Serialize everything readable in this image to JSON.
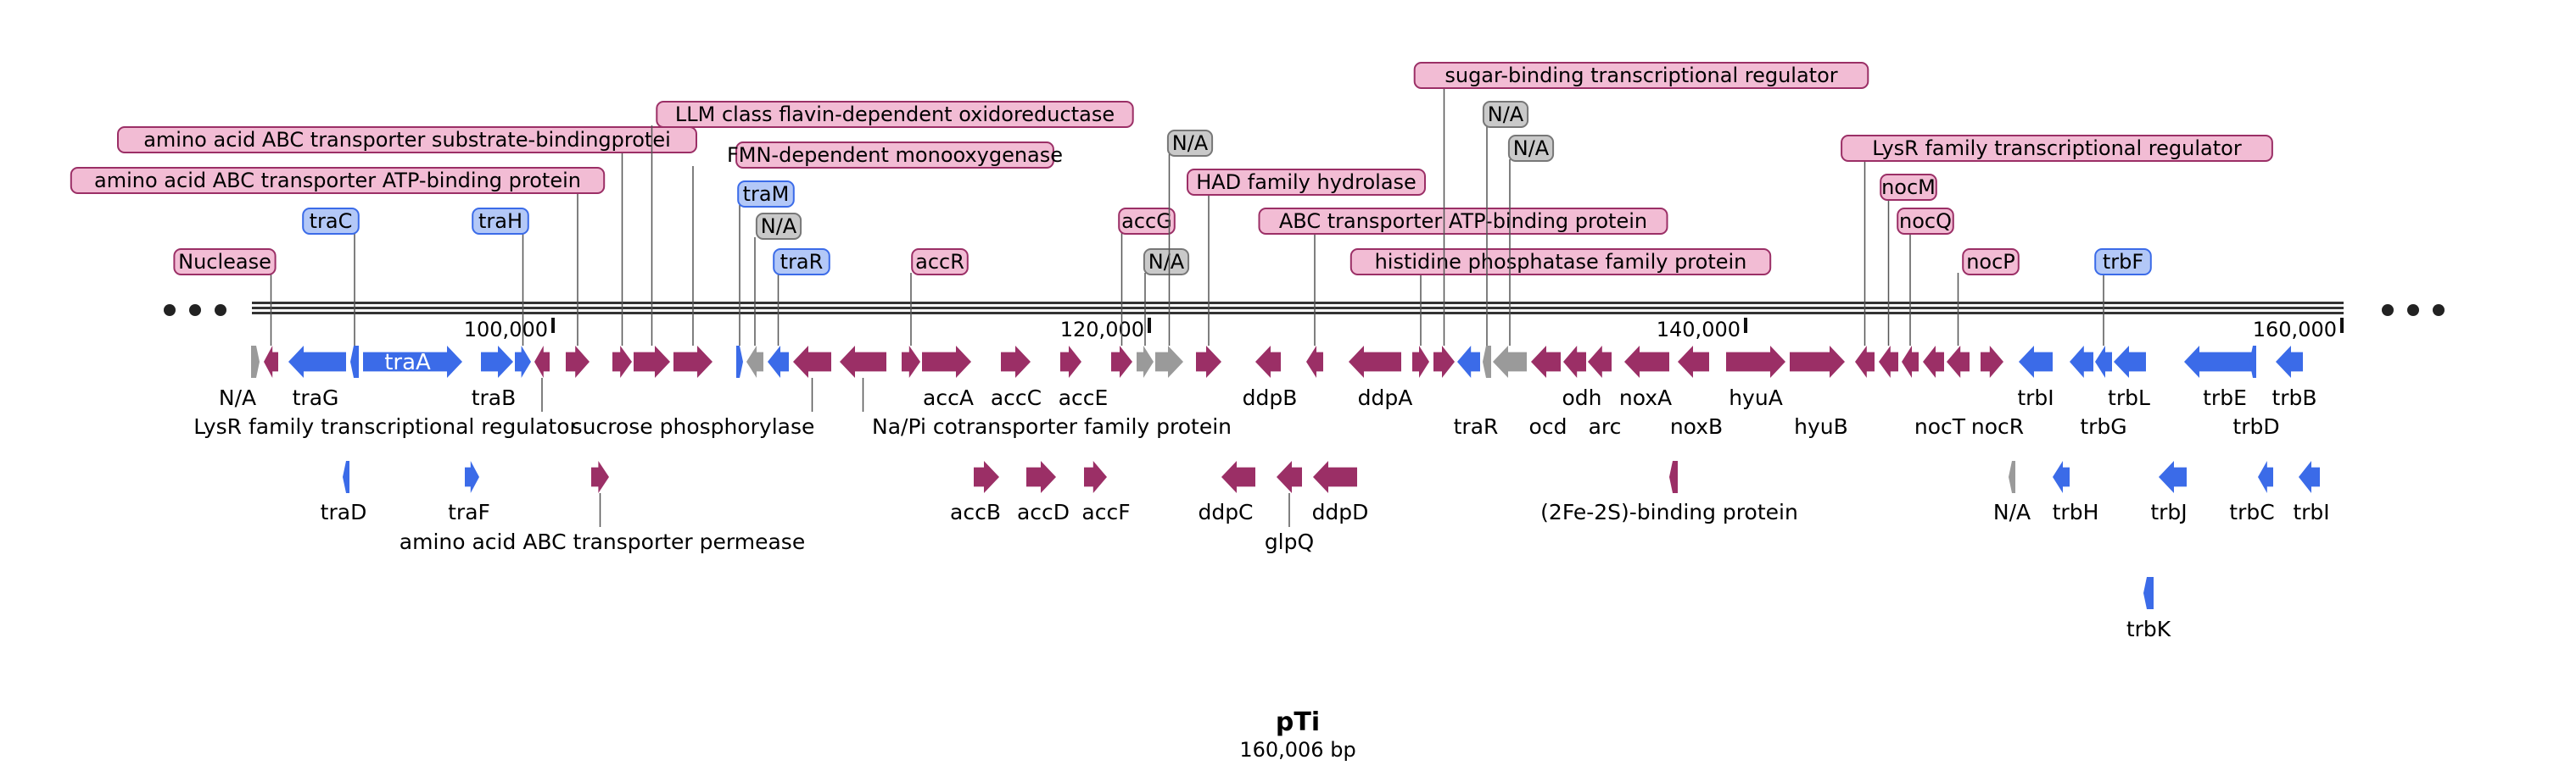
{
  "plasmid": {
    "name": "pTi",
    "length_label": "160,006 bp"
  },
  "colors": {
    "magenta": "#9b2f66",
    "blue": "#3b6be8",
    "grey": "#9a9a9a",
    "pink_box": "#f2bcd4",
    "pink_stroke": "#9b2f66",
    "blue_box": "#b3c8f7",
    "blue_stroke": "#3b6be8",
    "grey_box": "#c9c9c9",
    "grey_stroke": "#777777"
  },
  "scale": {
    "ticks": [
      "100,000",
      "120,000",
      "140,000",
      "160,000"
    ]
  },
  "features": [
    {
      "label": "N/A",
      "color": "grey",
      "dir": "fwd"
    },
    {
      "label": "Nuclease",
      "color": "magenta",
      "dir": "rev"
    },
    {
      "label": "traG",
      "color": "blue",
      "dir": "rev"
    },
    {
      "label": "traC",
      "color": "blue",
      "dir": "rev"
    },
    {
      "label": "traD",
      "color": "blue",
      "dir": "rev"
    },
    {
      "label": "traA",
      "color": "blue",
      "dir": "fwd"
    },
    {
      "label": "traF",
      "color": "blue",
      "dir": "fwd"
    },
    {
      "label": "traB",
      "color": "blue",
      "dir": "fwd"
    },
    {
      "label": "traH",
      "color": "blue",
      "dir": "fwd"
    },
    {
      "label": "LysR family transcriptional regulator",
      "color": "magenta",
      "dir": "rev"
    },
    {
      "label": "amino acid ABC transporter ATP-binding protein",
      "color": "magenta",
      "dir": "fwd"
    },
    {
      "label": "amino acid ABC transporter permease",
      "color": "magenta",
      "dir": "fwd"
    },
    {
      "label": "amino acid ABC transporter substrate-bindingprotei",
      "color": "magenta",
      "dir": "fwd"
    },
    {
      "label": "LLM class flavin-dependent oxidoreductase",
      "color": "magenta",
      "dir": "fwd"
    },
    {
      "label": "FMN-dependent monooxygenase",
      "color": "magenta",
      "dir": "fwd"
    },
    {
      "label": "traM",
      "color": "blue",
      "dir": "fwd"
    },
    {
      "label": "N/A",
      "color": "grey",
      "dir": "rev"
    },
    {
      "label": "traR",
      "color": "blue",
      "dir": "rev"
    },
    {
      "label": "sucrose phosphorylase",
      "color": "magenta",
      "dir": "rev"
    },
    {
      "label": "Na/Pi cotransporter family protein",
      "color": "magenta",
      "dir": "rev"
    },
    {
      "label": "accR",
      "color": "magenta",
      "dir": "fwd"
    },
    {
      "label": "accA",
      "color": "magenta",
      "dir": "fwd"
    },
    {
      "label": "accB",
      "color": "magenta",
      "dir": "fwd"
    },
    {
      "label": "accC",
      "color": "magenta",
      "dir": "fwd"
    },
    {
      "label": "accD",
      "color": "magenta",
      "dir": "fwd"
    },
    {
      "label": "accE",
      "color": "magenta",
      "dir": "fwd"
    },
    {
      "label": "accF",
      "color": "magenta",
      "dir": "fwd"
    },
    {
      "label": "accG",
      "color": "magenta",
      "dir": "fwd"
    },
    {
      "label": "N/A",
      "color": "grey",
      "dir": "fwd"
    },
    {
      "label": "N/A",
      "color": "grey",
      "dir": "fwd"
    },
    {
      "label": "HAD family hydrolase",
      "color": "magenta",
      "dir": "fwd"
    },
    {
      "label": "ddpB",
      "color": "magenta",
      "dir": "rev"
    },
    {
      "label": "ddpC",
      "color": "magenta",
      "dir": "rev"
    },
    {
      "label": "ddpA",
      "color": "magenta",
      "dir": "rev"
    },
    {
      "label": "glpQ",
      "color": "magenta",
      "dir": "rev"
    },
    {
      "label": "ddpD",
      "color": "magenta",
      "dir": "rev"
    },
    {
      "label": "ABC transporter ATP-binding protein",
      "color": "magenta",
      "dir": "rev"
    },
    {
      "label": "histidine phosphatase family protein",
      "color": "magenta",
      "dir": "fwd"
    },
    {
      "label": "sugar-binding transcriptional regulator",
      "color": "magenta",
      "dir": "fwd"
    },
    {
      "label": "traR",
      "color": "blue",
      "dir": "rev"
    },
    {
      "label": "N/A",
      "color": "grey",
      "dir": "rev"
    },
    {
      "label": "N/A",
      "color": "grey",
      "dir": "rev"
    },
    {
      "label": "ocd",
      "color": "magenta",
      "dir": "rev"
    },
    {
      "label": "odh",
      "color": "magenta",
      "dir": "rev"
    },
    {
      "label": "arc",
      "color": "magenta",
      "dir": "rev"
    },
    {
      "label": "noxA",
      "color": "magenta",
      "dir": "rev"
    },
    {
      "label": "(2Fe-2S)-binding protein",
      "color": "magenta",
      "dir": "rev"
    },
    {
      "label": "noxB",
      "color": "magenta",
      "dir": "rev"
    },
    {
      "label": "hyuA",
      "color": "magenta",
      "dir": "fwd"
    },
    {
      "label": "hyuB",
      "color": "magenta",
      "dir": "fwd"
    },
    {
      "label": "LysR family transcriptional regulator",
      "color": "magenta",
      "dir": "rev"
    },
    {
      "label": "nocM",
      "color": "magenta",
      "dir": "rev"
    },
    {
      "label": "nocQ",
      "color": "magenta",
      "dir": "rev"
    },
    {
      "label": "nocT",
      "color": "magenta",
      "dir": "rev"
    },
    {
      "label": "nocP",
      "color": "magenta",
      "dir": "rev"
    },
    {
      "label": "nocR",
      "color": "magenta",
      "dir": "fwd"
    },
    {
      "label": "N/A",
      "color": "grey",
      "dir": "rev"
    },
    {
      "label": "trbI",
      "color": "blue",
      "dir": "rev"
    },
    {
      "label": "trbH",
      "color": "blue",
      "dir": "rev"
    },
    {
      "label": "trbG",
      "color": "blue",
      "dir": "rev"
    },
    {
      "label": "trbF",
      "color": "blue",
      "dir": "rev"
    },
    {
      "label": "trbL",
      "color": "blue",
      "dir": "rev"
    },
    {
      "label": "trbJ",
      "color": "blue",
      "dir": "rev"
    },
    {
      "label": "trbK",
      "color": "blue",
      "dir": "rev"
    },
    {
      "label": "trbE",
      "color": "blue",
      "dir": "rev"
    },
    {
      "label": "trbD",
      "color": "blue",
      "dir": "rev"
    },
    {
      "label": "trbC",
      "color": "blue",
      "dir": "rev"
    },
    {
      "label": "trbB",
      "color": "blue",
      "dir": "rev"
    },
    {
      "label": "trbI",
      "color": "blue",
      "dir": "rev"
    }
  ]
}
